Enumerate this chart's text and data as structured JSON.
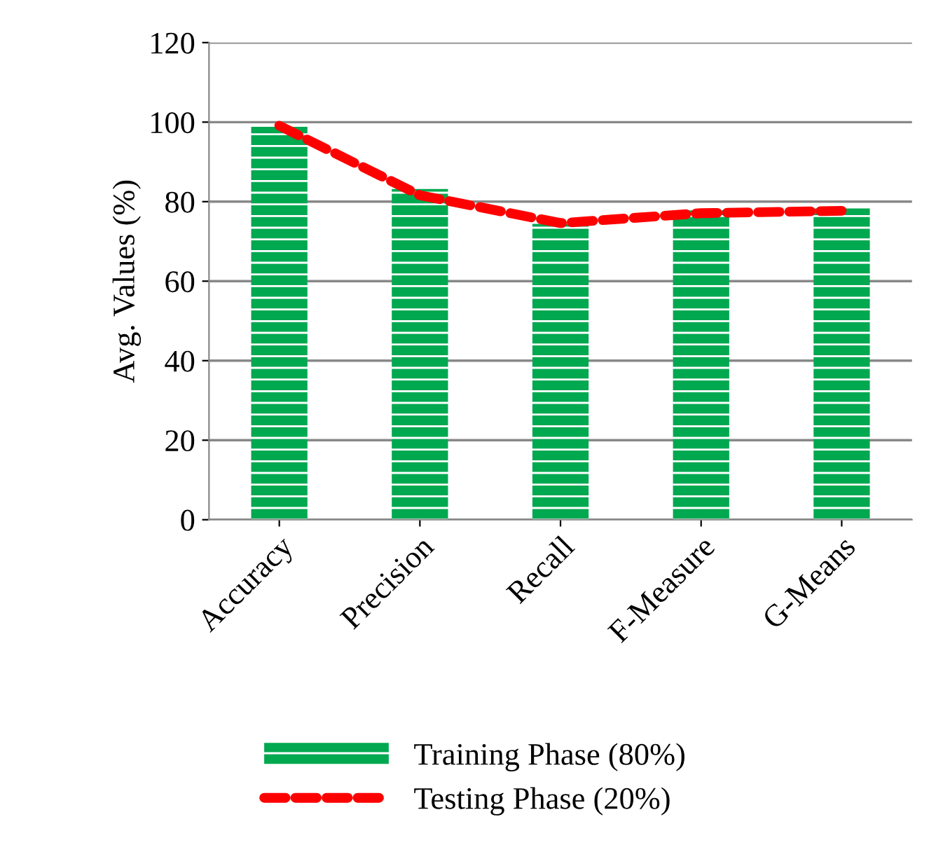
{
  "chart_data": {
    "type": "bar",
    "ylabel": "Avg. Values (%)",
    "categories": [
      "Accuracy",
      "Precision",
      "Recall",
      "F-Measure",
      "G-Means"
    ],
    "series": [
      {
        "name": "Training Phase (80%)",
        "color": "#00a850",
        "values": [
          98.8,
          83.2,
          74.4,
          77.8,
          78.3
        ]
      },
      {
        "name": "Testing Phase (20%)",
        "type": "line",
        "color": "#ff0000",
        "line_style": "dashed",
        "values": [
          99.1,
          81.6,
          74.6,
          77.1,
          77.7
        ]
      }
    ],
    "ylim": [
      0,
      120
    ],
    "yticks": [
      0,
      20,
      40,
      60,
      80,
      100,
      120
    ],
    "grid": "y",
    "legend": "bottom"
  }
}
